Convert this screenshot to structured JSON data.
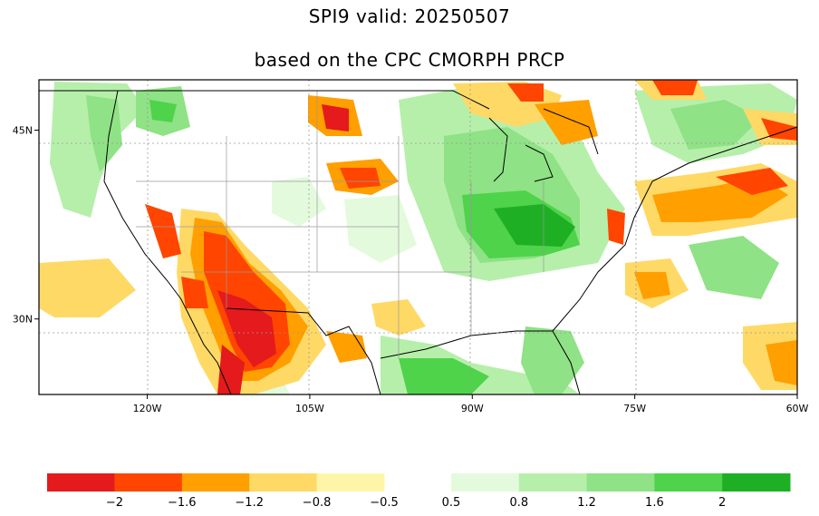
{
  "title": "SPI9   valid: 20250507",
  "subtitle": "based on the CPC CMORPH PRCP",
  "lat_labels": [
    "45N",
    "30N"
  ],
  "lon_labels": [
    "120W",
    "105W",
    "90W",
    "75W",
    "60W"
  ],
  "lat_values": [
    45,
    30
  ],
  "lon_values": [
    -120,
    -105,
    -90,
    -75,
    -60
  ],
  "extent": {
    "lon": [
      -130,
      -60
    ],
    "lat": [
      24,
      49
    ]
  },
  "colorbar": {
    "dry": [
      "#e41a1c",
      "#ff4500",
      "#ff9f00",
      "#ffd966",
      "#fff5a8"
    ],
    "wet": [
      "#e3fbdc",
      "#b6efaa",
      "#8fe285",
      "#4ed34a",
      "#1faf24"
    ],
    "dry_labels": [
      "−2",
      "−1.6",
      "−1.2",
      "−0.8",
      "−0.5"
    ],
    "wet_labels": [
      "0.5",
      "0.8",
      "1.2",
      "1.6",
      "2"
    ]
  }
}
